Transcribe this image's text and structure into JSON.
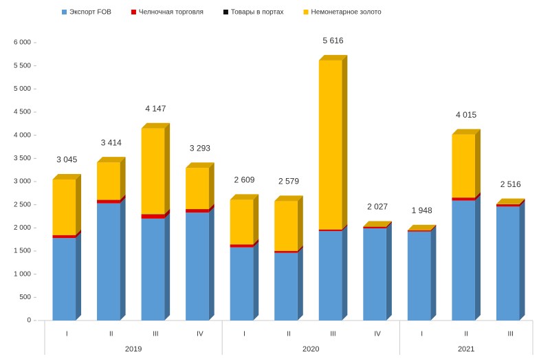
{
  "chart_data": {
    "type": "stacked-bar",
    "groups": [
      {
        "name": "2019",
        "categories": [
          "I",
          "II",
          "III",
          "IV"
        ]
      },
      {
        "name": "2020",
        "categories": [
          "I",
          "II",
          "III",
          "IV"
        ]
      },
      {
        "name": "2021",
        "categories": [
          "I",
          "II",
          "III"
        ]
      }
    ],
    "series": [
      {
        "name": "Экспорт FOB",
        "color": "#5b9bd5",
        "values": [
          1780,
          2530,
          2200,
          2330,
          1580,
          1460,
          1930,
          1990,
          1920,
          2590,
          2460
        ]
      },
      {
        "name": "Челночная торговля",
        "color": "#e00000",
        "values": [
          60,
          70,
          90,
          70,
          60,
          40,
          30,
          30,
          25,
          60,
          45
        ]
      },
      {
        "name": "Товары в портах",
        "color": "#111111",
        "values": [
          5,
          5,
          7,
          5,
          4,
          3,
          5,
          5,
          3,
          5,
          5
        ]
      },
      {
        "name": "Немонетарное золото",
        "color": "#ffc000",
        "values": [
          1200,
          809,
          1850,
          888,
          965,
          1076,
          3651,
          2,
          0,
          1360,
          6
        ]
      }
    ],
    "totals": [
      3045,
      3414,
      4147,
      3293,
      2609,
      2579,
      5616,
      2027,
      1948,
      4015,
      2516
    ],
    "total_labels": [
      "3 045",
      "3 414",
      "4 147",
      "3 293",
      "2 609",
      "2 579",
      "5 616",
      "2 027",
      "1 948",
      "4 015",
      "2 516"
    ],
    "ylim": [
      0,
      6000
    ],
    "yticks": [
      0,
      500,
      {
        "value": 1000,
        "label": "1 000"
      },
      {
        "value": 1500,
        "label": "1 500"
      },
      {
        "value": 2000,
        "label": "2 000"
      },
      {
        "value": 2500,
        "label": "2 500"
      },
      {
        "value": 3000,
        "label": "3 000"
      },
      {
        "value": 3500,
        "label": "3 500"
      },
      {
        "value": 4000,
        "label": "4 000"
      },
      {
        "value": 4500,
        "label": "4 500"
      },
      {
        "value": 5000,
        "label": "5 000"
      },
      {
        "value": 5500,
        "label": "5 500"
      },
      {
        "value": 6000,
        "label": "6 000"
      }
    ],
    "legend": "top"
  }
}
